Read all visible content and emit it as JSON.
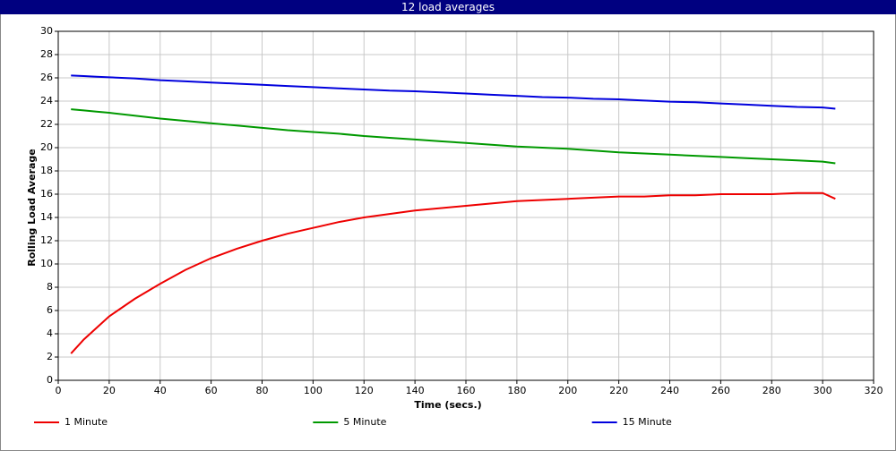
{
  "chart_data": {
    "type": "line",
    "title": "12 load averages",
    "x_label": "Time (secs.)",
    "y_label": "Rolling Load Average",
    "x": [
      5,
      10,
      15,
      20,
      30,
      40,
      50,
      60,
      70,
      80,
      90,
      100,
      110,
      120,
      130,
      140,
      150,
      160,
      170,
      180,
      190,
      200,
      210,
      220,
      230,
      240,
      250,
      260,
      270,
      280,
      290,
      300,
      305
    ],
    "series": [
      {
        "name": "1 Minute",
        "color": "#ee0000",
        "values": [
          2.3,
          3.5,
          4.5,
          5.5,
          7.0,
          8.3,
          9.5,
          10.5,
          11.3,
          12.0,
          12.6,
          13.1,
          13.6,
          14.0,
          14.3,
          14.6,
          14.8,
          15.0,
          15.2,
          15.4,
          15.5,
          15.6,
          15.7,
          15.8,
          15.8,
          15.9,
          15.9,
          16.0,
          16.0,
          16.0,
          16.1,
          16.1,
          15.6
        ]
      },
      {
        "name": "5 Minute",
        "color": "#009900",
        "values": [
          23.3,
          23.2,
          23.1,
          23.0,
          22.75,
          22.5,
          22.3,
          22.1,
          21.9,
          21.7,
          21.5,
          21.35,
          21.2,
          21.0,
          20.85,
          20.7,
          20.55,
          20.4,
          20.25,
          20.1,
          20.0,
          19.9,
          19.75,
          19.6,
          19.5,
          19.4,
          19.3,
          19.2,
          19.1,
          19.0,
          18.9,
          18.8,
          18.65
        ]
      },
      {
        "name": "15 Minute",
        "color": "#0000dd",
        "values": [
          26.2,
          26.15,
          26.1,
          26.05,
          25.95,
          25.8,
          25.7,
          25.6,
          25.5,
          25.4,
          25.3,
          25.2,
          25.1,
          25.0,
          24.9,
          24.85,
          24.75,
          24.65,
          24.55,
          24.45,
          24.35,
          24.3,
          24.2,
          24.15,
          24.05,
          23.95,
          23.9,
          23.8,
          23.7,
          23.6,
          23.5,
          23.45,
          23.35
        ]
      }
    ],
    "xlim": [
      0,
      320
    ],
    "xticks": [
      0,
      20,
      40,
      60,
      80,
      100,
      120,
      140,
      160,
      180,
      200,
      220,
      240,
      260,
      280,
      300,
      320
    ],
    "ylim": [
      0,
      30
    ],
    "yticks": [
      0,
      2,
      4,
      6,
      8,
      10,
      12,
      14,
      16,
      18,
      20,
      22,
      24,
      26,
      28,
      30
    ],
    "grid": true,
    "legend": "bottom"
  }
}
